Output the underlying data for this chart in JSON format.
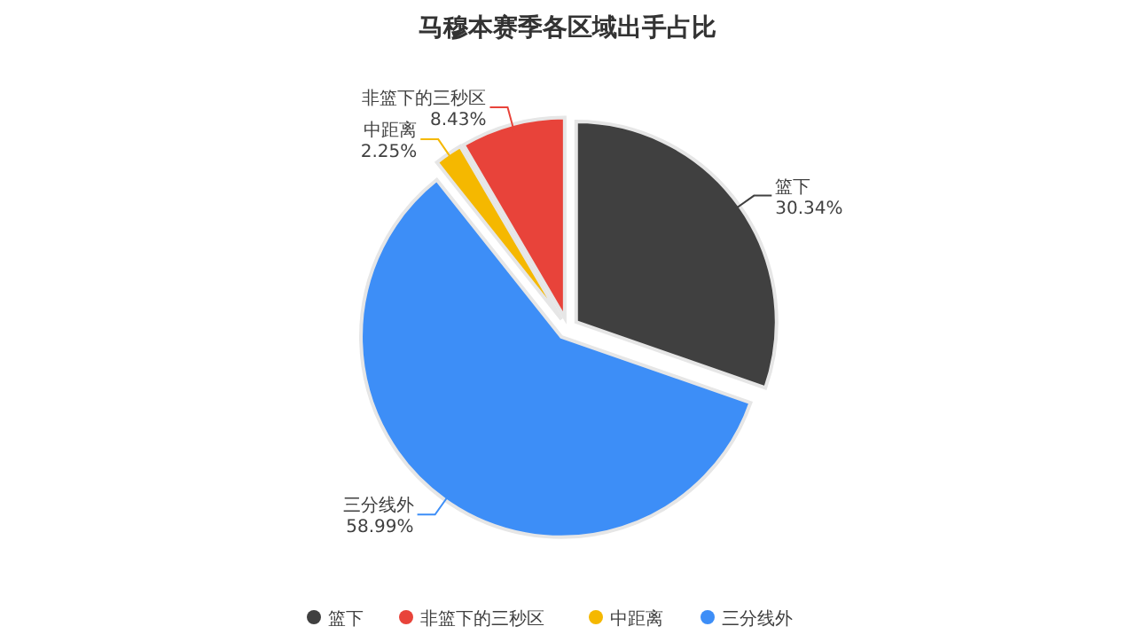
{
  "chart_data": {
    "type": "pie",
    "title": "马穆本赛季各区域出手占比",
    "categories": [
      "篮下",
      "非篮下的三秒区",
      "中距离",
      "三分线外"
    ],
    "values": [
      30.34,
      8.43,
      2.25,
      58.99
    ],
    "colors": [
      "#404040",
      "#e8433a",
      "#f5b800",
      "#3d8ef7"
    ],
    "value_labels": [
      "30.34%",
      "8.43%",
      "2.25%",
      "58.99%"
    ],
    "legend": "bottom"
  }
}
